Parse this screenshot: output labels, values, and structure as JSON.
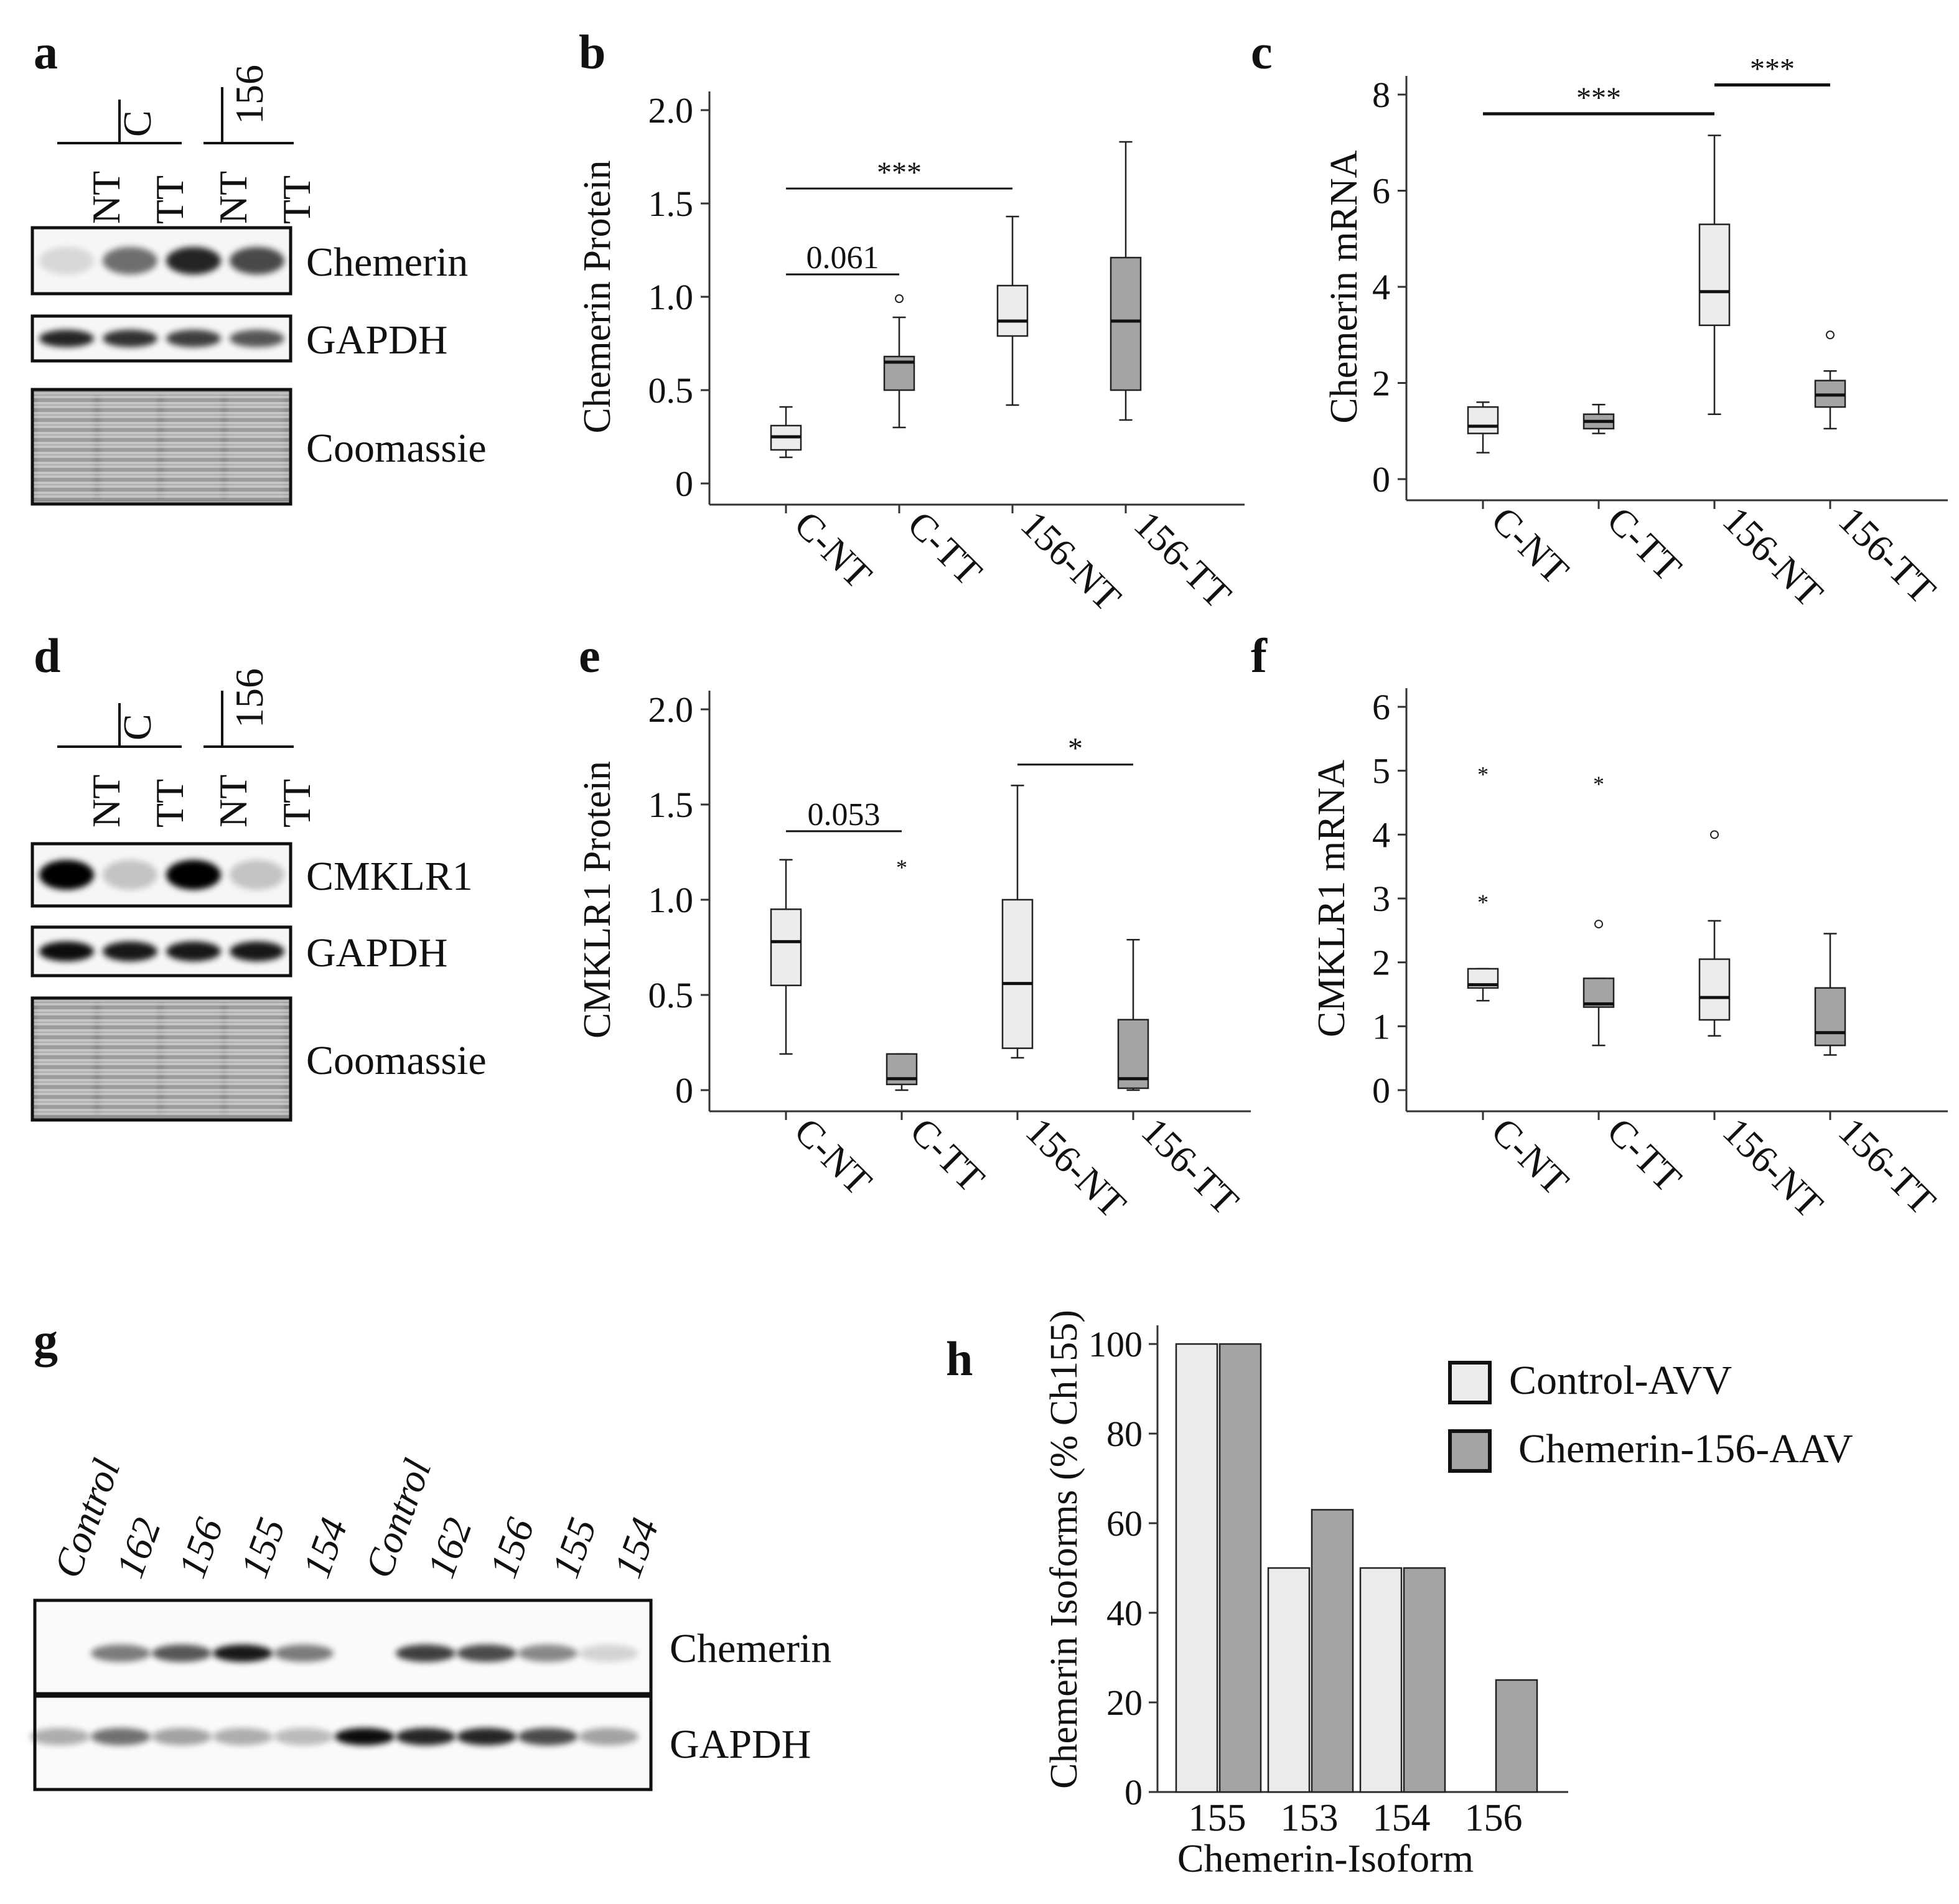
{
  "colors": {
    "light": "#ececec",
    "dark": "#a4a4a4",
    "ink": "#111111"
  },
  "panel_labels": {
    "a": "a",
    "b": "b",
    "c": "c",
    "d": "d",
    "e": "e",
    "f": "f",
    "g": "g",
    "h": "h"
  },
  "blot_a": {
    "groups": [
      "C",
      "156"
    ],
    "lanes": [
      "NT",
      "TT",
      "NT",
      "TT"
    ],
    "bands": [
      "Chemerin",
      "GAPDH",
      "Coomassie"
    ]
  },
  "blot_d": {
    "groups": [
      "C",
      "156"
    ],
    "lanes": [
      "NT",
      "TT",
      "NT",
      "TT"
    ],
    "bands": [
      "CMKLR1",
      "GAPDH",
      "Coomassie"
    ]
  },
  "blot_g": {
    "lanes": [
      "Control",
      "162",
      "156",
      "155",
      "154",
      "Control",
      "162",
      "156",
      "155",
      "154"
    ],
    "bands": [
      "Chemerin",
      "GAPDH"
    ]
  },
  "chart_data": [
    {
      "panel": "b",
      "type": "box",
      "ylabel": "Chemerin Protein",
      "categories": [
        "C-NT",
        "C-TT",
        "156-NT",
        "156-TT"
      ],
      "ylim": [
        0,
        2.0
      ],
      "yticks": [
        "0",
        "0.5",
        "1.0",
        "1.5",
        "2.0"
      ],
      "boxes": [
        {
          "min": 0.14,
          "q1": 0.18,
          "median": 0.25,
          "q3": 0.31,
          "max": 0.41,
          "fill": "light",
          "outliers": []
        },
        {
          "min": 0.3,
          "q1": 0.5,
          "median": 0.65,
          "q3": 0.68,
          "max": 0.89,
          "fill": "dark",
          "outliers": [
            {
              "value": 0.99,
              "marker": "o"
            }
          ]
        },
        {
          "min": 0.42,
          "q1": 0.79,
          "median": 0.87,
          "q3": 1.06,
          "max": 1.43,
          "fill": "light",
          "outliers": []
        },
        {
          "min": 0.34,
          "q1": 0.5,
          "median": 0.87,
          "q3": 1.21,
          "max": 1.83,
          "fill": "dark",
          "outliers": []
        }
      ],
      "annotations": [
        {
          "from": 0,
          "to": 1,
          "y": 1.12,
          "text": "0.061"
        },
        {
          "from": 0,
          "to": 2,
          "y": 1.58,
          "text": "***"
        }
      ]
    },
    {
      "panel": "c",
      "type": "box",
      "ylabel": "Chemerin mRNA",
      "categories": [
        "C-NT",
        "C-TT",
        "156-NT",
        "156-TT"
      ],
      "ylim": [
        0,
        8
      ],
      "yticks": [
        "0",
        "2",
        "4",
        "6",
        "8"
      ],
      "boxes": [
        {
          "min": 0.55,
          "q1": 0.95,
          "median": 1.1,
          "q3": 1.5,
          "max": 1.6,
          "fill": "light",
          "outliers": []
        },
        {
          "min": 0.95,
          "q1": 1.05,
          "median": 1.2,
          "q3": 1.35,
          "max": 1.55,
          "fill": "dark",
          "outliers": []
        },
        {
          "min": 1.35,
          "q1": 3.2,
          "median": 3.9,
          "q3": 5.3,
          "max": 7.15,
          "fill": "light",
          "outliers": []
        },
        {
          "min": 1.05,
          "q1": 1.5,
          "median": 1.75,
          "q3": 2.05,
          "max": 2.25,
          "fill": "dark",
          "outliers": [
            {
              "value": 3.0,
              "marker": "o"
            }
          ]
        }
      ],
      "annotations": [
        {
          "from": 0,
          "to": 2,
          "y": 7.6,
          "text": "***"
        },
        {
          "from": 2,
          "to": 3,
          "y": 8.2,
          "text": "***"
        }
      ]
    },
    {
      "panel": "e",
      "type": "box",
      "ylabel": "CMKLR1 Protein",
      "categories": [
        "C-NT",
        "C-TT",
        "156-NT",
        "156-TT"
      ],
      "ylim": [
        0,
        2.0
      ],
      "yticks": [
        "0",
        "0.5",
        "1.0",
        "1.5",
        "2.0"
      ],
      "boxes": [
        {
          "min": 0.19,
          "q1": 0.55,
          "median": 0.78,
          "q3": 0.95,
          "max": 1.21,
          "fill": "light",
          "outliers": []
        },
        {
          "min": 0.0,
          "q1": 0.03,
          "median": 0.06,
          "q3": 0.19,
          "max": 0.19,
          "fill": "dark",
          "outliers": [
            {
              "value": 1.19,
              "marker": "*"
            }
          ]
        },
        {
          "min": 0.17,
          "q1": 0.22,
          "median": 0.56,
          "q3": 1.0,
          "max": 1.6,
          "fill": "light",
          "outliers": []
        },
        {
          "min": 0.0,
          "q1": 0.01,
          "median": 0.06,
          "q3": 0.37,
          "max": 0.79,
          "fill": "dark",
          "outliers": []
        }
      ],
      "annotations": [
        {
          "from": 0,
          "to": 1,
          "y": 1.36,
          "text": "0.053"
        },
        {
          "from": 2,
          "to": 3,
          "y": 1.71,
          "text": "*"
        }
      ]
    },
    {
      "panel": "f",
      "type": "box",
      "ylabel": "CMKLR1 mRNA",
      "categories": [
        "C-NT",
        "C-TT",
        "156-NT",
        "156-TT"
      ],
      "ylim": [
        0,
        6
      ],
      "yticks": [
        "0",
        "1",
        "2",
        "3",
        "4",
        "5",
        "6"
      ],
      "boxes": [
        {
          "min": 1.4,
          "q1": 1.6,
          "median": 1.65,
          "q3": 1.9,
          "max": 1.9,
          "fill": "light",
          "outliers": [
            {
              "value": 3.0,
              "marker": "*"
            },
            {
              "value": 5.0,
              "marker": "*"
            }
          ]
        },
        {
          "min": 0.7,
          "q1": 1.3,
          "median": 1.35,
          "q3": 1.75,
          "max": 1.75,
          "fill": "dark",
          "outliers": [
            {
              "value": 2.6,
              "marker": "o"
            },
            {
              "value": 4.85,
              "marker": "*"
            }
          ]
        },
        {
          "min": 0.85,
          "q1": 1.1,
          "median": 1.45,
          "q3": 2.05,
          "max": 2.65,
          "fill": "light",
          "outliers": [
            {
              "value": 4.0,
              "marker": "o"
            }
          ]
        },
        {
          "min": 0.55,
          "q1": 0.7,
          "median": 0.9,
          "q3": 1.6,
          "max": 2.45,
          "fill": "dark",
          "outliers": []
        }
      ],
      "annotations": []
    },
    {
      "panel": "h",
      "type": "bar",
      "xlabel": "Chemerin-Isoform",
      "ylabel": "Chemerin Isoforms (% Ch155)",
      "categories": [
        "155",
        "153",
        "154",
        "156"
      ],
      "ylim": [
        0,
        100
      ],
      "yticks": [
        "0",
        "20",
        "40",
        "60",
        "80",
        "100"
      ],
      "series": [
        {
          "name": "Control-AVV",
          "fill": "light",
          "values": [
            100,
            50,
            50,
            0
          ]
        },
        {
          "name": "Chemerin-156-AAV",
          "fill": "dark",
          "values": [
            100,
            63,
            50,
            25
          ]
        }
      ],
      "legend": "top-right"
    }
  ]
}
